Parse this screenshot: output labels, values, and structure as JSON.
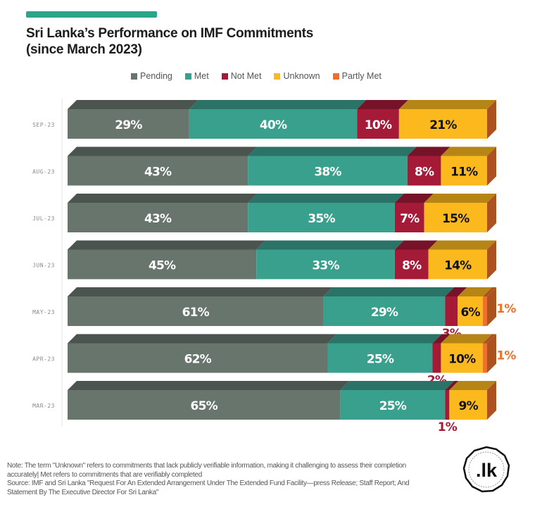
{
  "header": {
    "title_line1": "Sri Lanka’s Performance on IMF Commitments",
    "title_line2": "(since March 2023)"
  },
  "colors": {
    "accent": "#2aa58a",
    "Pending": "#68756d",
    "Met": "#3aa08e",
    "Not Met": "#a41a37",
    "Unknown": "#fbb91e",
    "Partly Met": "#f0702a"
  },
  "chart_data": {
    "type": "bar",
    "orientation": "horizontal",
    "stacked": true,
    "normalized_percent": true,
    "title": "Sri Lanka’s Performance on IMF Commitments (since March 2023)",
    "xlabel": "",
    "ylabel": "",
    "xlim": [
      0,
      100
    ],
    "grid": false,
    "legend_position": "top",
    "categories": [
      "SEP-23",
      "AUG-23",
      "JUL-23",
      "JUN-23",
      "MAY-23",
      "APR-23",
      "MAR-23"
    ],
    "series": [
      {
        "name": "Pending",
        "values": [
          29,
          43,
          43,
          45,
          61,
          62,
          65
        ]
      },
      {
        "name": "Met",
        "values": [
          40,
          38,
          35,
          33,
          29,
          25,
          25
        ]
      },
      {
        "name": "Not Met",
        "values": [
          10,
          8,
          7,
          8,
          3,
          2,
          1
        ]
      },
      {
        "name": "Unknown",
        "values": [
          21,
          11,
          15,
          14,
          6,
          10,
          9
        ]
      },
      {
        "name": "Partly Met",
        "values": [
          0,
          0,
          0,
          0,
          1,
          1,
          0
        ]
      }
    ],
    "labels": [
      [
        "29%",
        "40%",
        "10%",
        "21%",
        ""
      ],
      [
        "43%",
        "38%",
        "8%",
        "11%",
        ""
      ],
      [
        "43%",
        "35%",
        "7%",
        "15%",
        ""
      ],
      [
        "45%",
        "33%",
        "8%",
        "14%",
        ""
      ],
      [
        "61%",
        "29%",
        "3%",
        "6%",
        "1%"
      ],
      [
        "62%",
        "25%",
        "2%",
        "10%",
        "1%"
      ],
      [
        "65%",
        "25%",
        "1%",
        "9%",
        ""
      ]
    ]
  },
  "legend": [
    {
      "label": "Pending"
    },
    {
      "label": "Met"
    },
    {
      "label": "Not Met"
    },
    {
      "label": "Unknown"
    },
    {
      "label": "Partly Met"
    }
  ],
  "footnote": {
    "note": "Note: The term \"Unknown\" refers to commitments that lack publicly verifiable information, making it challenging to assess their completion accurately| Met refers to commitments that are verifiably completed",
    "source": "Source: IMF and Sri Lanka \"Request For An Extended Arrangement Under The Extended Fund Facility—press Release; Staff Report; And Statement By The Executive Director For Sri Lanka\""
  },
  "logo": {
    "text": ".lk"
  }
}
